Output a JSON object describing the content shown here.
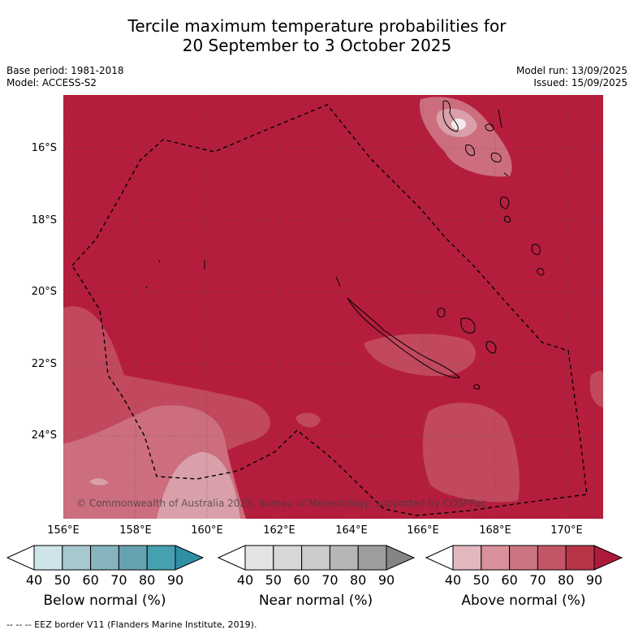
{
  "title": {
    "line1": "Tercile maximum temperature probabilities for",
    "line2": "20 September to 3 October 2025"
  },
  "meta": {
    "base_period": "Base period: 1981-2018",
    "model": "Model: ACCESS-S2",
    "model_run": "Model run: 13/09/2025",
    "issued": "Issued: 15/09/2025"
  },
  "map": {
    "lat_labels": [
      "16°S",
      "18°S",
      "20°S",
      "22°S",
      "24°S"
    ],
    "lon_labels": [
      "156°E",
      "158°E",
      "160°E",
      "162°E",
      "164°E",
      "166°E",
      "168°E",
      "170°E"
    ],
    "copyright": "© Commonwealth of Australia 2025, Bureau of Meteorology, supported by COSPPac",
    "colors": {
      "above_80_90": "#b41e3c",
      "above_70_80": "#c2485e",
      "above_60_70": "#cc6e7e",
      "above_50_60": "#d9a0aa",
      "background": "#ffffff"
    }
  },
  "legends": [
    {
      "label": "Below normal (%)",
      "ticks": [
        "40",
        "50",
        "60",
        "70",
        "80",
        "90"
      ],
      "colors": [
        "#ffffff",
        "#cde4e8",
        "#a6c8cf",
        "#86b4bf",
        "#66a3b2",
        "#45a0b0",
        "#2f8fa3"
      ]
    },
    {
      "label": "Near normal (%)",
      "ticks": [
        "40",
        "50",
        "60",
        "70",
        "80",
        "90"
      ],
      "colors": [
        "#ffffff",
        "#e4e4e4",
        "#d8d8d8",
        "#cbcbcb",
        "#b6b6b6",
        "#9d9d9d",
        "#858585"
      ]
    },
    {
      "label": "Above normal (%)",
      "ticks": [
        "40",
        "50",
        "60",
        "70",
        "80",
        "90"
      ],
      "colors": [
        "#ffffff",
        "#e2b7be",
        "#d8909a",
        "#cc7580",
        "#c45566",
        "#b83447",
        "#b01a3a"
      ]
    }
  ],
  "footer": "--  --  -- EEZ border V11 (Flanders Marine Institute, 2019)."
}
